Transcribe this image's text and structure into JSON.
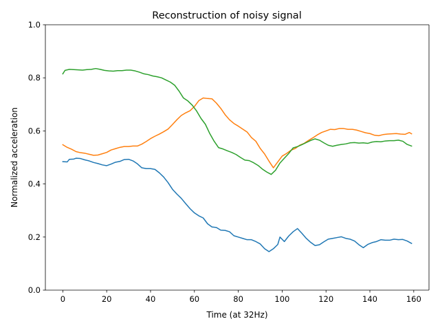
{
  "chart_data": {
    "type": "line",
    "title": "Reconstruction of noisy signal",
    "xlabel": "Time (at 32Hz)",
    "ylabel": "Normalized acceleration",
    "xlim": [
      -7.95,
      166.95
    ],
    "ylim": [
      0.0,
      1.0
    ],
    "xticks": [
      0,
      20,
      40,
      60,
      80,
      100,
      120,
      140,
      160
    ],
    "xtick_labels": [
      "0",
      "20",
      "40",
      "60",
      "80",
      "100",
      "120",
      "140",
      "160"
    ],
    "yticks": [
      0.0,
      0.2,
      0.4,
      0.6,
      0.8,
      1.0
    ],
    "ytick_labels": [
      "0.0",
      "0.2",
      "0.4",
      "0.6",
      "0.8",
      "1.0"
    ],
    "grid": false,
    "legend": "none",
    "series": [
      {
        "color": "#1f77b4",
        "x": [
          0,
          2,
          3,
          5,
          6,
          8,
          10,
          12,
          14,
          16,
          18,
          20,
          22,
          24,
          26,
          28,
          30,
          32,
          34,
          36,
          38,
          40,
          42,
          44,
          46,
          48,
          50,
          52,
          54,
          56,
          58,
          60,
          62,
          64,
          66,
          68,
          70,
          72,
          74,
          76,
          78,
          80,
          82,
          84,
          86,
          88,
          90,
          92,
          94,
          96,
          98,
          99,
          101,
          103,
          105,
          107,
          109,
          111,
          113,
          115,
          117,
          119,
          121,
          123,
          125,
          127,
          129,
          131,
          133,
          135,
          137,
          139,
          141,
          143,
          145,
          147,
          149,
          151,
          153,
          155,
          157,
          159
        ],
        "y": [
          0.484,
          0.483,
          0.493,
          0.494,
          0.497,
          0.496,
          0.491,
          0.487,
          0.481,
          0.477,
          0.472,
          0.469,
          0.475,
          0.482,
          0.485,
          0.492,
          0.493,
          0.487,
          0.476,
          0.461,
          0.458,
          0.458,
          0.455,
          0.442,
          0.426,
          0.405,
          0.38,
          0.362,
          0.346,
          0.326,
          0.307,
          0.291,
          0.28,
          0.272,
          0.25,
          0.238,
          0.236,
          0.226,
          0.225,
          0.22,
          0.205,
          0.2,
          0.195,
          0.19,
          0.19,
          0.183,
          0.174,
          0.156,
          0.145,
          0.156,
          0.172,
          0.2,
          0.183,
          0.204,
          0.22,
          0.232,
          0.214,
          0.195,
          0.18,
          0.168,
          0.171,
          0.182,
          0.192,
          0.195,
          0.198,
          0.201,
          0.195,
          0.192,
          0.185,
          0.171,
          0.16,
          0.172,
          0.179,
          0.183,
          0.19,
          0.188,
          0.188,
          0.192,
          0.19,
          0.191,
          0.185,
          0.176
        ]
      },
      {
        "color": "#ff7f0e",
        "x": [
          0,
          2,
          4,
          6,
          8,
          10,
          12,
          14,
          16,
          18,
          20,
          22,
          24,
          26,
          28,
          30,
          32,
          34,
          36,
          38,
          40,
          42,
          44,
          46,
          48,
          50,
          52,
          54,
          56,
          58,
          60,
          62,
          64,
          66,
          68,
          70,
          72,
          74,
          76,
          78,
          80,
          82,
          84,
          86,
          88,
          90,
          92,
          94,
          96,
          98,
          100,
          102,
          104,
          106,
          108,
          110,
          112,
          114,
          116,
          118,
          120,
          122,
          124,
          126,
          128,
          130,
          132,
          134,
          136,
          138,
          140,
          142,
          144,
          146,
          148,
          150,
          152,
          154,
          156,
          158,
          159
        ],
        "y": [
          0.548,
          0.538,
          0.531,
          0.522,
          0.518,
          0.516,
          0.512,
          0.508,
          0.509,
          0.514,
          0.519,
          0.528,
          0.533,
          0.538,
          0.541,
          0.541,
          0.543,
          0.543,
          0.55,
          0.56,
          0.571,
          0.58,
          0.588,
          0.597,
          0.607,
          0.624,
          0.642,
          0.658,
          0.668,
          0.676,
          0.692,
          0.714,
          0.724,
          0.722,
          0.721,
          0.705,
          0.685,
          0.661,
          0.642,
          0.628,
          0.618,
          0.607,
          0.596,
          0.575,
          0.561,
          0.534,
          0.513,
          0.486,
          0.461,
          0.483,
          0.505,
          0.515,
          0.527,
          0.534,
          0.546,
          0.553,
          0.564,
          0.574,
          0.585,
          0.594,
          0.6,
          0.606,
          0.605,
          0.609,
          0.609,
          0.606,
          0.606,
          0.603,
          0.598,
          0.593,
          0.59,
          0.584,
          0.582,
          0.586,
          0.588,
          0.589,
          0.59,
          0.588,
          0.587,
          0.594,
          0.589
        ]
      },
      {
        "color": "#2ca02c",
        "x": [
          0,
          1,
          3,
          5,
          7,
          9,
          11,
          13,
          15,
          17,
          19,
          21,
          23,
          25,
          27,
          29,
          31,
          33,
          35,
          37,
          39,
          41,
          43,
          45,
          47,
          49,
          51,
          53,
          55,
          57,
          59,
          61,
          63,
          65,
          67,
          69,
          71,
          73,
          75,
          77,
          79,
          81,
          83,
          85,
          87,
          89,
          91,
          93,
          95,
          97,
          99,
          101,
          103,
          105,
          107,
          109,
          111,
          113,
          115,
          117,
          119,
          121,
          123,
          125,
          127,
          129,
          131,
          133,
          135,
          137,
          139,
          141,
          143,
          145,
          147,
          149,
          151,
          153,
          155,
          157,
          159
        ],
        "y": [
          0.815,
          0.828,
          0.832,
          0.831,
          0.83,
          0.829,
          0.831,
          0.832,
          0.835,
          0.832,
          0.828,
          0.826,
          0.825,
          0.827,
          0.827,
          0.829,
          0.829,
          0.826,
          0.821,
          0.815,
          0.812,
          0.807,
          0.804,
          0.8,
          0.792,
          0.784,
          0.772,
          0.75,
          0.724,
          0.713,
          0.697,
          0.675,
          0.647,
          0.625,
          0.59,
          0.561,
          0.537,
          0.532,
          0.525,
          0.519,
          0.511,
          0.5,
          0.49,
          0.488,
          0.48,
          0.47,
          0.456,
          0.445,
          0.436,
          0.452,
          0.479,
          0.497,
          0.515,
          0.536,
          0.541,
          0.548,
          0.556,
          0.564,
          0.57,
          0.565,
          0.555,
          0.546,
          0.542,
          0.546,
          0.549,
          0.551,
          0.555,
          0.556,
          0.554,
          0.555,
          0.553,
          0.558,
          0.56,
          0.559,
          0.562,
          0.563,
          0.563,
          0.565,
          0.561,
          0.549,
          0.543
        ]
      }
    ]
  }
}
